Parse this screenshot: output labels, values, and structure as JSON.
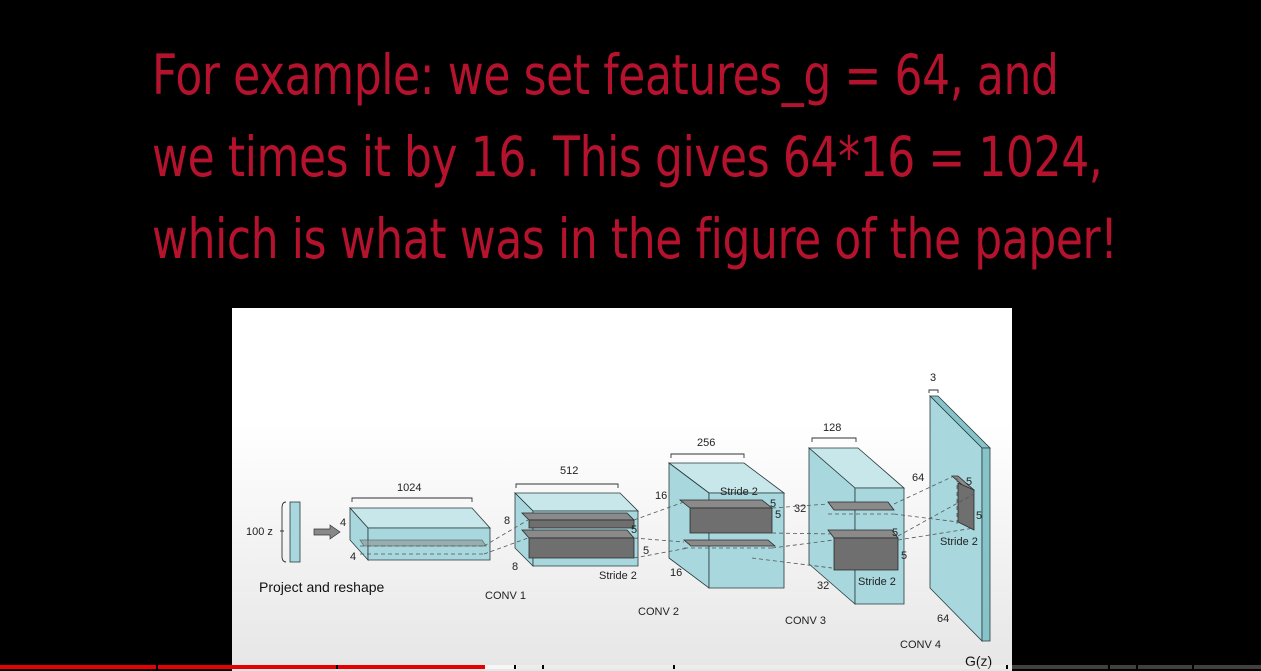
{
  "caption": {
    "lines": [
      "For example: we set features_g = 64, and",
      "we times it by 16. This gives 64*16 = 1024,",
      "which is what was in the figure of the paper!"
    ]
  },
  "figure": {
    "input_label": "100 z",
    "project_label": "Project and reshape",
    "block1": {
      "width": "1024",
      "h": "4",
      "w": "4"
    },
    "block2": {
      "width": "512",
      "h": "8",
      "w": "8",
      "kernel_a": "5",
      "kernel_b": "5",
      "stride": "Stride 2",
      "layer": "CONV 1"
    },
    "block3": {
      "width": "256",
      "h": "16",
      "w": "16",
      "kernel_a": "5",
      "kernel_b": "5",
      "stride": "Stride 2",
      "layer": "CONV 2"
    },
    "block4": {
      "width": "128",
      "h": "32",
      "w": "32",
      "kernel_a": "5",
      "kernel_b": "5",
      "stride": "Stride 2",
      "layer": "CONV 3"
    },
    "block5": {
      "width": "3",
      "h": "64",
      "w": "64",
      "kernel_a": "5",
      "kernel_b": "5",
      "stride": "Stride 2",
      "layer": "CONV 4"
    },
    "output_label": "G(z)"
  },
  "player": {
    "played_fraction": 0.385,
    "buffered_fraction": 0.41,
    "colors": {
      "played": "#e60000",
      "track": "#555555"
    }
  }
}
